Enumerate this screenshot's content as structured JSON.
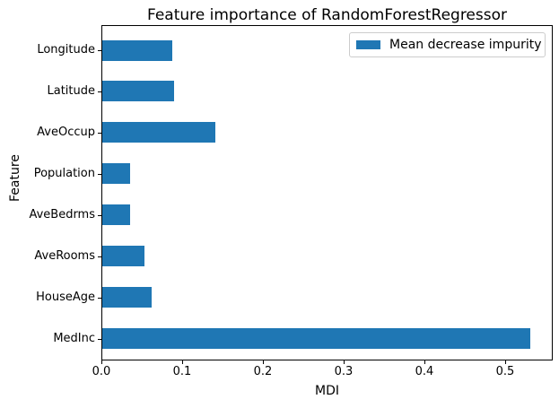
{
  "chart_data": {
    "type": "bar",
    "orientation": "horizontal",
    "title": "Feature importance of RandomForestRegressor",
    "xlabel": "MDI",
    "ylabel": "Feature",
    "categories": [
      "Longitude",
      "Latitude",
      "AveOccup",
      "Population",
      "AveBedrms",
      "AveRooms",
      "HouseAge",
      "MedInc"
    ],
    "categories_order": "top-to-bottom",
    "series": [
      {
        "name": "Mean decrease impurity",
        "values": [
          0.087,
          0.089,
          0.14,
          0.035,
          0.034,
          0.052,
          0.061,
          0.53
        ]
      }
    ],
    "x_ticks": [
      0.0,
      0.1,
      0.2,
      0.3,
      0.4,
      0.5
    ],
    "x_tick_decimals": 1,
    "xlim": [
      0,
      0.559
    ],
    "ylim_slots": 8,
    "bar_color": "#1f77b4",
    "legend_position": "upper right",
    "legend_edge_color": "#cccccc",
    "grid": false,
    "spine_color": "#000000",
    "background_color": "#ffffff"
  }
}
